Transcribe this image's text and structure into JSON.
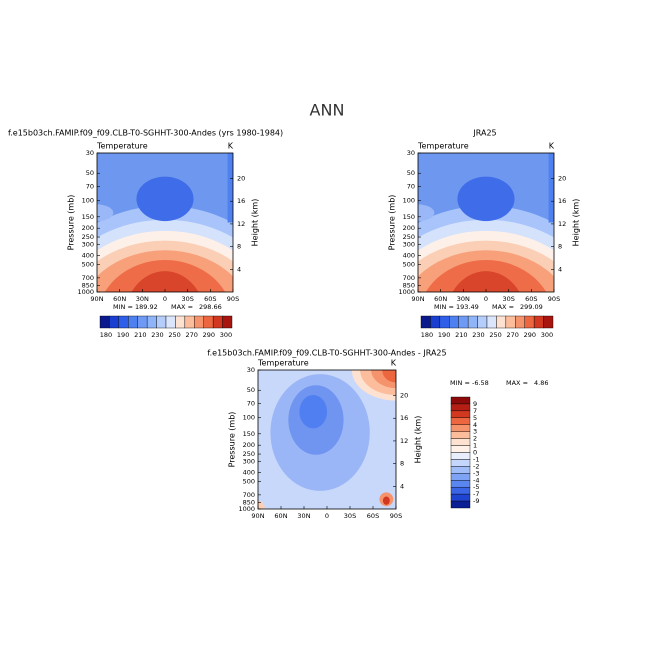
{
  "title": "ANN",
  "chart_data": [
    {
      "type": "contour",
      "title": "f.e15b03ch.FAMIP.f09_f09.CLB-T0-SGHHT-300-Andes (yrs 1980-1984)",
      "variable": "Temperature",
      "units": "K",
      "ylabel": "Pressure (mb)",
      "y2label": "Height (km)",
      "ylim": [
        1000,
        30
      ],
      "ylog": true,
      "yticks": [
        30,
        50,
        70,
        100,
        150,
        200,
        250,
        300,
        400,
        500,
        700,
        850,
        1000
      ],
      "y2lim": [
        0,
        24.5
      ],
      "y2ticks": [
        4,
        8,
        12,
        16,
        20
      ],
      "xlim": [
        90,
        -90
      ],
      "xticks": [
        {
          "value": 90,
          "label": "90N"
        },
        {
          "value": 60,
          "label": "60N"
        },
        {
          "value": 30,
          "label": "30N"
        },
        0,
        {
          "value": -30,
          "label": "30S"
        },
        {
          "value": -60,
          "label": "60S"
        },
        {
          "value": -90,
          "label": "90S"
        }
      ],
      "min_label": "MIN =",
      "min": 189.92,
      "max_label": "MAX =",
      "max": 298.66,
      "colorbar": {
        "colors": [
          "#0a1a8c",
          "#1a3fd0",
          "#2f5fe8",
          "#4f80f0",
          "#6e9af5",
          "#90b4f8",
          "#b4cdfb",
          "#dbe6fc",
          "#fde2d2",
          "#fbbd9c",
          "#f5936c",
          "#ec6640",
          "#d2381f",
          "#a8140e"
        ],
        "labels": [
          180,
          190,
          210,
          230,
          250,
          270,
          290,
          300
        ]
      }
    },
    {
      "type": "contour",
      "title": "JRA25",
      "variable": "Temperature",
      "units": "K",
      "ylabel": "Pressure (mb)",
      "y2label": "Height (km)",
      "ylim": [
        1000,
        30
      ],
      "ylog": true,
      "yticks": [
        30,
        50,
        70,
        100,
        150,
        200,
        250,
        300,
        400,
        500,
        700,
        850,
        1000
      ],
      "y2lim": [
        0,
        24.5
      ],
      "y2ticks": [
        4,
        8,
        12,
        16,
        20
      ],
      "xlim": [
        90,
        -90
      ],
      "xticks": [
        {
          "value": 90,
          "label": "90N"
        },
        {
          "value": 60,
          "label": "60N"
        },
        {
          "value": 30,
          "label": "30N"
        },
        0,
        {
          "value": -30,
          "label": "30S"
        },
        {
          "value": -60,
          "label": "60S"
        },
        {
          "value": -90,
          "label": "90S"
        }
      ],
      "min_label": "MIN =",
      "min": 193.49,
      "max_label": "MAX =",
      "max": 299.09,
      "colorbar": {
        "colors": [
          "#0a1a8c",
          "#1a3fd0",
          "#2f5fe8",
          "#4f80f0",
          "#6e9af5",
          "#90b4f8",
          "#b4cdfb",
          "#dbe6fc",
          "#fde2d2",
          "#fbbd9c",
          "#f5936c",
          "#ec6640",
          "#d2381f",
          "#a8140e"
        ],
        "labels": [
          180,
          190,
          210,
          230,
          250,
          270,
          290,
          300
        ]
      }
    },
    {
      "type": "contour",
      "title": "f.e15b03ch.FAMIP.f09_f09.CLB-T0-SGHHT-300-Andes - JRA25",
      "variable": "Temperature",
      "units": "K",
      "ylabel": "Pressure (mb)",
      "y2label": "Height (km)",
      "ylim": [
        1000,
        30
      ],
      "ylog": true,
      "yticks": [
        30,
        50,
        70,
        100,
        150,
        200,
        250,
        300,
        400,
        500,
        700,
        850,
        1000
      ],
      "y2lim": [
        0,
        24.5
      ],
      "y2ticks": [
        4,
        8,
        12,
        16,
        20
      ],
      "xlim": [
        90,
        -90
      ],
      "xticks": [
        {
          "value": 90,
          "label": "90N"
        },
        {
          "value": 60,
          "label": "60N"
        },
        {
          "value": 30,
          "label": "30N"
        },
        0,
        {
          "value": -30,
          "label": "30S"
        },
        {
          "value": -60,
          "label": "60S"
        },
        {
          "value": -90,
          "label": "90S"
        }
      ],
      "min_label": "MIN =",
      "min": -6.58,
      "max_label": "MAX =",
      "max": 4.86,
      "colorbar": {
        "colors": [
          "#8c0a0a",
          "#b41e14",
          "#d2381f",
          "#ec6640",
          "#f5936c",
          "#fbbd9c",
          "#fde2d2",
          "#fff1e8",
          "#e8eefc",
          "#c4d6fb",
          "#a0bdf8",
          "#7ea2f4",
          "#5a86ef",
          "#3a66e6",
          "#1f44d2",
          "#0a1e96"
        ],
        "labels": [
          9,
          7,
          5,
          4,
          3,
          2,
          1,
          0,
          -1,
          -2,
          -3,
          -4,
          -5,
          -7,
          -9
        ]
      }
    }
  ]
}
